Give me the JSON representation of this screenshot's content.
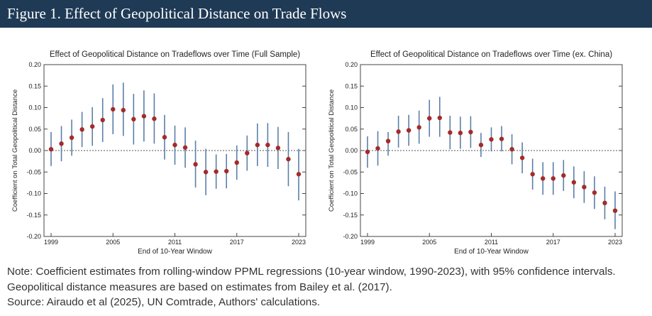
{
  "figure_title": "Figure 1. Effect of Geopolitical Distance on Trade Flows",
  "note": "Note: Coefficient estimates from rolling-window PPML regressions (10-year window, 1990-2023), with 95% confidence intervals. Geopolitical distance measures are based on estimates from Bailey et al. (2017).",
  "source": "Source: Airaudo et al (2025), UN Comtrade, Authors' calculations.",
  "colors": {
    "header": "#1f3a55",
    "point": "#a52a2a",
    "ci": "#5a7fa8"
  },
  "chart_data": [
    {
      "type": "scatter",
      "title": "Effect of Geopolitical Distance on Tradeflows over Time (Full Sample)",
      "xlabel": "End of 10-Year Window",
      "ylabel": "Coefficient on Total Geopolitical Distance",
      "xlim": [
        1999,
        2023
      ],
      "ylim": [
        -0.2,
        0.2
      ],
      "xticks": [
        1999,
        2005,
        2011,
        2017,
        2023
      ],
      "yticks": [
        "0.20",
        "0.15",
        "0.10",
        "0.05",
        "0.00",
        "-0.05",
        "-0.10",
        "-0.15",
        "-0.20"
      ],
      "reference_line": 0,
      "x": [
        1999,
        2000,
        2001,
        2002,
        2003,
        2004,
        2005,
        2006,
        2007,
        2008,
        2009,
        2010,
        2011,
        2012,
        2013,
        2014,
        2015,
        2016,
        2017,
        2018,
        2019,
        2020,
        2021,
        2022,
        2023
      ],
      "estimate": [
        0.003,
        0.016,
        0.03,
        0.049,
        0.056,
        0.071,
        0.096,
        0.094,
        0.073,
        0.08,
        0.074,
        0.031,
        0.013,
        0.007,
        -0.032,
        -0.05,
        -0.049,
        -0.048,
        -0.028,
        -0.006,
        0.013,
        0.013,
        0.006,
        -0.02,
        -0.055
      ],
      "ci_low": [
        -0.036,
        -0.025,
        -0.012,
        0.008,
        0.011,
        0.02,
        0.038,
        0.034,
        0.014,
        0.021,
        0.016,
        -0.021,
        -0.033,
        -0.04,
        -0.086,
        -0.104,
        -0.089,
        -0.088,
        -0.068,
        -0.047,
        -0.036,
        -0.038,
        -0.043,
        -0.083,
        -0.116
      ],
      "ci_high": [
        0.043,
        0.057,
        0.072,
        0.09,
        0.101,
        0.122,
        0.154,
        0.158,
        0.132,
        0.14,
        0.133,
        0.083,
        0.058,
        0.054,
        0.023,
        0.004,
        -0.009,
        -0.008,
        0.012,
        0.035,
        0.063,
        0.064,
        0.055,
        0.043,
        0.004
      ]
    },
    {
      "type": "scatter",
      "title": "Effect of Geopolitical Distance on Tradeflows over Time (ex. China)",
      "xlabel": "End of 10-Year Window",
      "ylabel": "Coefficient on Total Geopolitical Distance",
      "xlim": [
        1999,
        2023
      ],
      "ylim": [
        -0.2,
        0.2
      ],
      "xticks": [
        1999,
        2005,
        2011,
        2017,
        2023
      ],
      "yticks": [
        "0.20",
        "0.15",
        "0.10",
        "0.05",
        "0.00",
        "-0.05",
        "-0.10",
        "-0.15",
        "-0.20"
      ],
      "reference_line": 0,
      "x": [
        1999,
        2000,
        2001,
        2002,
        2003,
        2004,
        2005,
        2006,
        2007,
        2008,
        2009,
        2010,
        2011,
        2012,
        2013,
        2014,
        2015,
        2016,
        2017,
        2018,
        2019,
        2020,
        2021,
        2022,
        2023
      ],
      "estimate": [
        -0.003,
        0.005,
        0.022,
        0.044,
        0.047,
        0.054,
        0.075,
        0.076,
        0.042,
        0.041,
        0.043,
        0.013,
        0.026,
        0.027,
        0.003,
        -0.017,
        -0.055,
        -0.065,
        -0.065,
        -0.058,
        -0.074,
        -0.085,
        -0.098,
        -0.122,
        -0.14
      ],
      "ci_low": [
        -0.04,
        -0.035,
        -0.012,
        0.007,
        0.011,
        0.016,
        0.032,
        0.032,
        0.003,
        0.004,
        0.006,
        -0.015,
        -0.002,
        -0.002,
        -0.032,
        -0.053,
        -0.091,
        -0.103,
        -0.103,
        -0.094,
        -0.111,
        -0.122,
        -0.136,
        -0.16,
        -0.183
      ],
      "ci_high": [
        0.033,
        0.045,
        0.043,
        0.081,
        0.083,
        0.093,
        0.118,
        0.125,
        0.081,
        0.079,
        0.08,
        0.041,
        0.054,
        0.057,
        0.038,
        0.019,
        -0.019,
        -0.027,
        -0.027,
        -0.022,
        -0.037,
        -0.048,
        -0.06,
        -0.084,
        -0.095
      ]
    }
  ]
}
